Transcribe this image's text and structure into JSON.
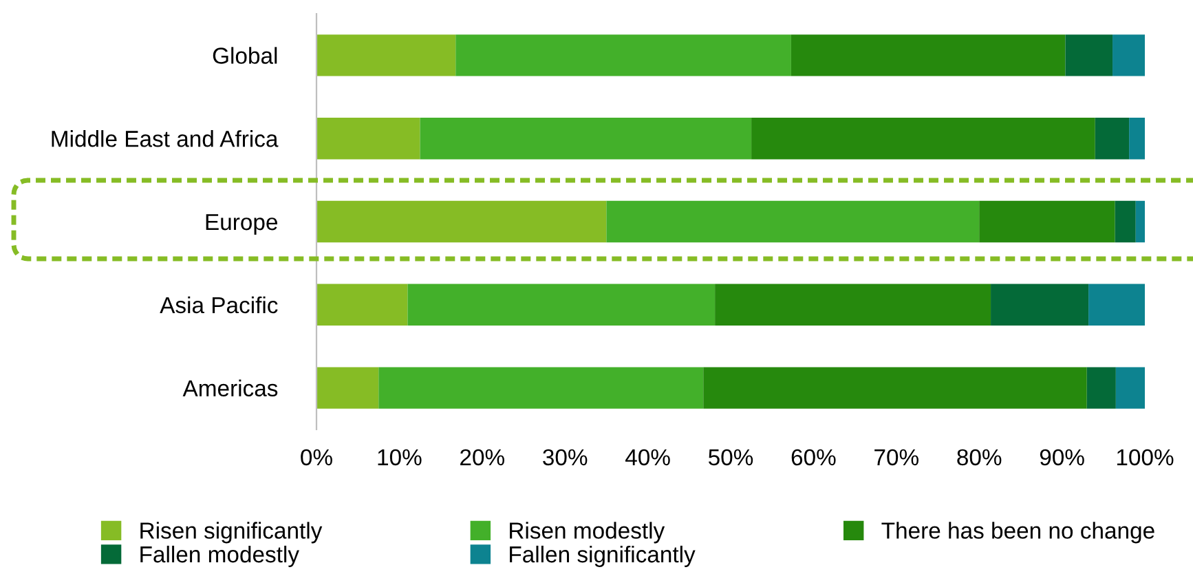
{
  "chart_data": {
    "type": "bar",
    "orientation": "horizontal",
    "stacked": true,
    "categories": [
      "Global",
      "Middle East and Africa",
      "Europe",
      "Asia Pacific",
      "Americas"
    ],
    "series": [
      {
        "name": "Risen significantly",
        "color": "#86bc25",
        "values": [
          16.8,
          12.5,
          35.0,
          11.0,
          7.5
        ]
      },
      {
        "name": "Risen modestly",
        "color": "#43b02a",
        "values": [
          40.5,
          40.0,
          45.0,
          37.1,
          39.2
        ]
      },
      {
        "name": "There has been no change",
        "color": "#26890d",
        "values": [
          33.1,
          41.5,
          16.4,
          33.3,
          46.3
        ]
      },
      {
        "name": "Fallen modestly",
        "color": "#046a38",
        "values": [
          5.7,
          4.1,
          2.5,
          11.8,
          3.5
        ]
      },
      {
        "name": "Fallen significantly",
        "color": "#0d8390",
        "values": [
          3.9,
          1.9,
          1.1,
          6.8,
          3.5
        ]
      }
    ],
    "xlim": [
      0,
      100
    ],
    "xticks": [
      {
        "value": 0,
        "label": "0%"
      },
      {
        "value": 10,
        "label": "10%"
      },
      {
        "value": 20,
        "label": "20%"
      },
      {
        "value": 30,
        "label": "30%"
      },
      {
        "value": 40,
        "label": "40%"
      },
      {
        "value": 50,
        "label": "50%"
      },
      {
        "value": 60,
        "label": "60%"
      },
      {
        "value": 70,
        "label": "70%"
      },
      {
        "value": 80,
        "label": "80%"
      },
      {
        "value": 90,
        "label": "90%"
      },
      {
        "value": 100,
        "label": "100%"
      }
    ],
    "grid": false,
    "legend": "bottom"
  }
}
